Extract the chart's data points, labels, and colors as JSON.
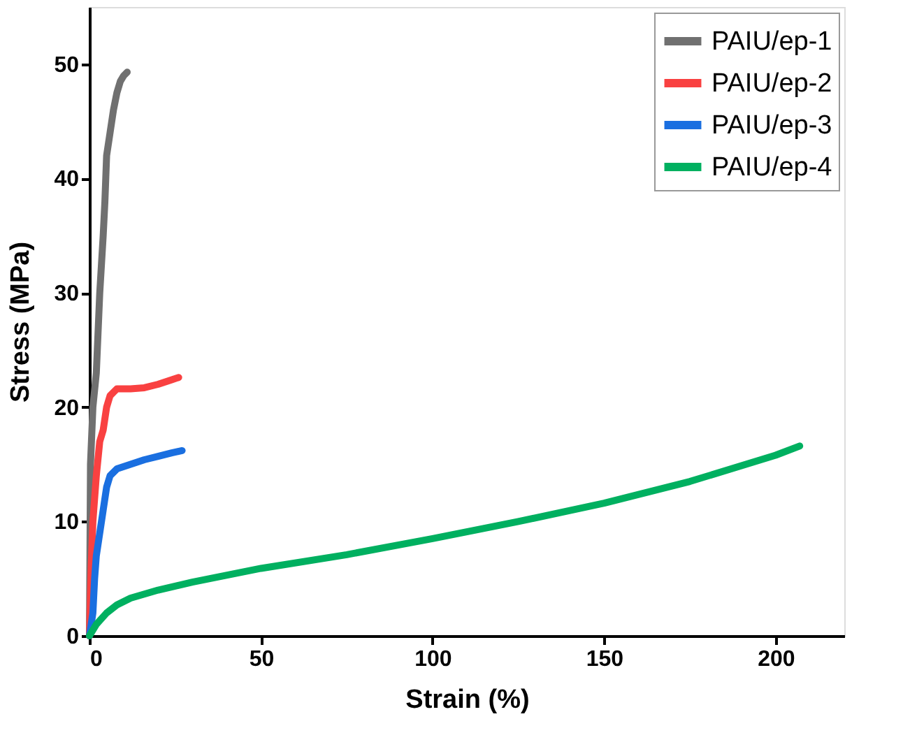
{
  "chart_data": {
    "type": "line",
    "xlabel": "Strain (%)",
    "ylabel": "Stress (MPa)",
    "xlim": [
      0,
      220
    ],
    "xticks": [
      0,
      50,
      100,
      150,
      200
    ],
    "ylim": [
      0,
      55
    ],
    "yticks": [
      0,
      10,
      20,
      30,
      40,
      50
    ],
    "grid": false,
    "legend": "top right",
    "line_style": "solid",
    "marker": "none",
    "series": [
      {
        "name": "PAIU/ep-1",
        "color": "#707070",
        "x": [
          0,
          0.3,
          1,
          2,
          3,
          4,
          4.5,
          5,
          6,
          7,
          8,
          9,
          10,
          11
        ],
        "values": [
          0,
          15,
          20,
          23,
          30,
          35,
          38,
          42,
          44,
          46,
          47.5,
          48.5,
          49,
          49.3
        ]
      },
      {
        "name": "PAIU/ep-2",
        "color": "#f94141",
        "x": [
          0,
          0.5,
          1,
          2,
          3,
          4,
          5,
          6,
          8,
          12,
          16,
          20,
          24,
          26
        ],
        "values": [
          0,
          6,
          10,
          14,
          17,
          18,
          20,
          21,
          21.6,
          21.6,
          21.7,
          22,
          22.4,
          22.6
        ]
      },
      {
        "name": "PAIU/ep-3",
        "color": "#1a6fe0",
        "x": [
          0,
          1,
          1.5,
          2,
          3,
          4,
          5,
          6,
          8,
          12,
          16,
          20,
          24,
          27
        ],
        "values": [
          0,
          2,
          5,
          7,
          9,
          11,
          13,
          14,
          14.6,
          15,
          15.4,
          15.7,
          16,
          16.2
        ]
      },
      {
        "name": "PAIU/ep-4",
        "color": "#00b060",
        "x": [
          0,
          2,
          5,
          8,
          12,
          20,
          30,
          50,
          75,
          100,
          125,
          150,
          175,
          200,
          207
        ],
        "values": [
          0,
          1,
          2,
          2.7,
          3.3,
          4,
          4.7,
          5.9,
          7.1,
          8.5,
          10,
          11.6,
          13.5,
          15.8,
          16.6
        ]
      }
    ]
  }
}
